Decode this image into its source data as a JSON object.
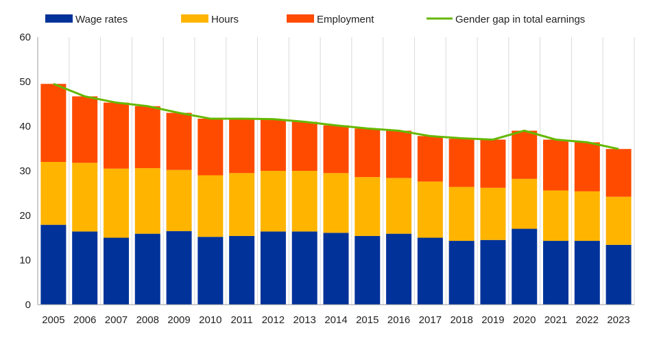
{
  "chart_data": {
    "type": "bar",
    "stacked": true,
    "title": "",
    "xlabel": "",
    "ylabel": "",
    "ylim": [
      0,
      60
    ],
    "yticks": [
      0,
      10,
      20,
      30,
      40,
      50,
      60
    ],
    "grid": "vertical",
    "legend_position": "top",
    "categories": [
      "2005",
      "2006",
      "2007",
      "2008",
      "2009",
      "2010",
      "2011",
      "2012",
      "2013",
      "2014",
      "2015",
      "2016",
      "2017",
      "2018",
      "2019",
      "2020",
      "2021",
      "2022",
      "2023"
    ],
    "series": [
      {
        "name": "Wage rates",
        "kind": "bar",
        "color": "#003299",
        "values": [
          17.9,
          16.4,
          15.0,
          15.9,
          16.5,
          15.2,
          15.4,
          16.4,
          16.4,
          16.1,
          15.4,
          15.9,
          15.0,
          14.3,
          14.5,
          17.0,
          14.3,
          14.3,
          13.4
        ]
      },
      {
        "name": "Hours",
        "kind": "bar",
        "color": "#FFB400",
        "values": [
          14.1,
          15.4,
          15.5,
          14.7,
          13.7,
          13.8,
          14.1,
          13.6,
          13.6,
          13.4,
          13.2,
          12.5,
          12.6,
          12.1,
          11.7,
          11.2,
          11.3,
          11.1,
          10.8
        ]
      },
      {
        "name": "Employment",
        "kind": "bar",
        "color": "#FF4B00",
        "values": [
          17.5,
          14.9,
          14.8,
          13.9,
          12.8,
          12.7,
          12.2,
          11.6,
          11.0,
          10.7,
          10.9,
          10.6,
          10.2,
          10.8,
          10.8,
          10.8,
          11.4,
          11.0,
          10.7
        ]
      },
      {
        "name": "Gender gap in total earnings",
        "kind": "line",
        "color": "#65B800",
        "values": [
          49.5,
          46.7,
          45.3,
          44.5,
          43.0,
          41.7,
          41.7,
          41.6,
          41.0,
          40.2,
          39.5,
          39.0,
          37.8,
          37.3,
          37.0,
          39.0,
          37.0,
          36.4,
          34.9
        ]
      }
    ]
  }
}
